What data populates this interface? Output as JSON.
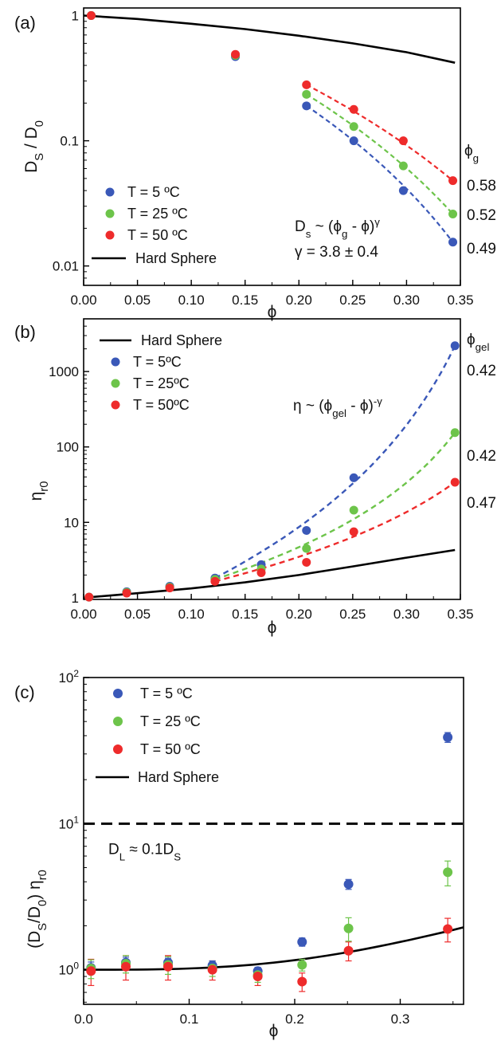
{
  "chart_data": [
    {
      "panel": "(a)",
      "type": "scatter",
      "xlabel": "ϕ",
      "ylabel": "DS / D0",
      "xlim": [
        0,
        0.35
      ],
      "ylim": [
        0.007,
        1.15
      ],
      "y_scale": "log",
      "x_ticks": [
        "0.00",
        "0.05",
        "0.10",
        "0.15",
        "0.20",
        "0.25",
        "0.30",
        "0.35"
      ],
      "y_ticks": [
        "1",
        "0.1",
        "0.01"
      ],
      "legend": [
        "T = 5 ºC",
        "T = 25 ºC",
        "T = 50 ºC",
        "Hard Sphere"
      ],
      "legend_position": "bottom-left",
      "colors": {
        "blue": "#3a58b8",
        "green": "#6dc44a",
        "red": "#ee2b2b",
        "line": "#000000"
      },
      "series": [
        {
          "name": "T = 5 ºC",
          "x": [
            0.007,
            0.141,
            0.207,
            0.251,
            0.297,
            0.343
          ],
          "y": [
            1.0,
            0.47,
            0.19,
            0.1,
            0.04,
            0.0155
          ]
        },
        {
          "name": "T = 25 ºC",
          "x": [
            0.007,
            0.141,
            0.207,
            0.251,
            0.297,
            0.343
          ],
          "y": [
            1.0,
            0.48,
            0.235,
            0.13,
            0.063,
            0.026
          ]
        },
        {
          "name": "T = 50 ºC",
          "x": [
            0.007,
            0.141,
            0.207,
            0.251,
            0.297,
            0.343
          ],
          "y": [
            1.0,
            0.49,
            0.28,
            0.178,
            0.1,
            0.048
          ]
        },
        {
          "name": "Hard Sphere",
          "x": [
            0.0,
            0.05,
            0.1,
            0.15,
            0.2,
            0.25,
            0.3,
            0.345
          ],
          "y": [
            1.0,
            0.94,
            0.86,
            0.78,
            0.69,
            0.6,
            0.51,
            0.42
          ]
        }
      ],
      "annotations": {
        "phi_g_header": "ϕg",
        "phi_g_values": [
          "0.58",
          "0.52",
          "0.49"
        ],
        "eq1": "Ds ~ (ϕg - ϕ)γ",
        "eq2": "γ = 3.8 ± 0.4"
      }
    },
    {
      "panel": "(b)",
      "type": "scatter",
      "xlabel": "ϕ",
      "ylabel": "ηr0",
      "xlim": [
        0,
        0.35
      ],
      "ylim": [
        0.95,
        5000
      ],
      "y_scale": "log",
      "x_ticks": [
        "0.00",
        "0.05",
        "0.10",
        "0.15",
        "0.20",
        "0.25",
        "0.30",
        "0.35"
      ],
      "y_ticks": [
        "1",
        "10",
        "100",
        "1000"
      ],
      "legend": [
        "Hard Sphere",
        "T = 5ºC",
        "T = 25ºC",
        "T = 50ºC"
      ],
      "legend_position": "top-left",
      "series": [
        {
          "name": "T = 5ºC",
          "x": [
            0.005,
            0.04,
            0.08,
            0.122,
            0.165,
            0.207,
            0.251,
            0.345
          ],
          "y": [
            1.02,
            1.2,
            1.42,
            1.82,
            2.75,
            7.8,
            39,
            2200
          ]
        },
        {
          "name": "T = 25ºC",
          "x": [
            0.005,
            0.04,
            0.08,
            0.122,
            0.165,
            0.207,
            0.251,
            0.345
          ],
          "y": [
            1.02,
            1.18,
            1.38,
            1.75,
            2.4,
            4.5,
            14.5,
            155
          ]
        },
        {
          "name": "T = 50ºC",
          "x": [
            0.005,
            0.04,
            0.08,
            0.122,
            0.165,
            0.207,
            0.251,
            0.345
          ],
          "y": [
            1.02,
            1.15,
            1.35,
            1.65,
            2.15,
            2.95,
            7.5,
            34
          ]
        },
        {
          "name": "Hard Sphere",
          "x": [
            0.0,
            0.05,
            0.1,
            0.15,
            0.2,
            0.25,
            0.3,
            0.345
          ],
          "y": [
            1.0,
            1.15,
            1.33,
            1.6,
            2.0,
            2.6,
            3.4,
            4.3
          ]
        }
      ],
      "annotations": {
        "phi_gel_header": "ϕgel",
        "phi_gel_values": [
          "0.42",
          "0.42",
          "0.47"
        ],
        "eq": "η ~ (ϕgel - ϕ)-γ"
      }
    },
    {
      "panel": "(c)",
      "type": "scatter",
      "xlabel": "ϕ",
      "ylabel": "(DS/D0) ηr0",
      "xlim": [
        0,
        0.36
      ],
      "ylim": [
        0.58,
        100
      ],
      "y_scale": "log",
      "x_ticks": [
        "0.0",
        "0.1",
        "0.2",
        "0.3"
      ],
      "y_ticks": [
        "10^0",
        "10^1",
        "10^2"
      ],
      "legend": [
        "T = 5 ºC",
        "T = 25 ºC",
        "T = 50 ºC",
        "Hard Sphere"
      ],
      "legend_position": "top-left",
      "series": [
        {
          "name": "T = 5 ºC",
          "x": [
            0.007,
            0.04,
            0.08,
            0.122,
            0.165,
            0.207,
            0.251,
            0.345
          ],
          "y": [
            1.03,
            1.12,
            1.12,
            1.07,
            0.98,
            1.55,
            3.85,
            39
          ],
          "err": [
            0.1,
            0.1,
            0.08,
            0.08,
            0.06,
            0.1,
            0.3,
            3
          ]
        },
        {
          "name": "T = 25 ºC",
          "x": [
            0.007,
            0.04,
            0.08,
            0.122,
            0.165,
            0.207,
            0.251,
            0.345
          ],
          "y": [
            1.02,
            1.1,
            1.08,
            1.02,
            0.92,
            1.08,
            1.92,
            4.65
          ],
          "err": [
            0.15,
            0.15,
            0.15,
            0.12,
            0.1,
            0.1,
            0.35,
            0.9
          ]
        },
        {
          "name": "T = 50 ºC",
          "x": [
            0.007,
            0.04,
            0.08,
            0.122,
            0.165,
            0.207,
            0.251,
            0.345
          ],
          "y": [
            0.98,
            1.05,
            1.05,
            1.0,
            0.9,
            0.83,
            1.35,
            1.9
          ],
          "err": [
            0.2,
            0.2,
            0.2,
            0.15,
            0.12,
            0.12,
            0.2,
            0.35
          ]
        },
        {
          "name": "Hard Sphere",
          "x": [
            0.0,
            0.05,
            0.1,
            0.15,
            0.2,
            0.25,
            0.3,
            0.36
          ],
          "y": [
            1.0,
            1.03,
            1.08,
            1.14,
            1.22,
            1.33,
            1.5,
            1.82
          ]
        }
      ],
      "reference_line": {
        "y": 10,
        "label": "DL ≈ 0.1DS"
      }
    }
  ]
}
